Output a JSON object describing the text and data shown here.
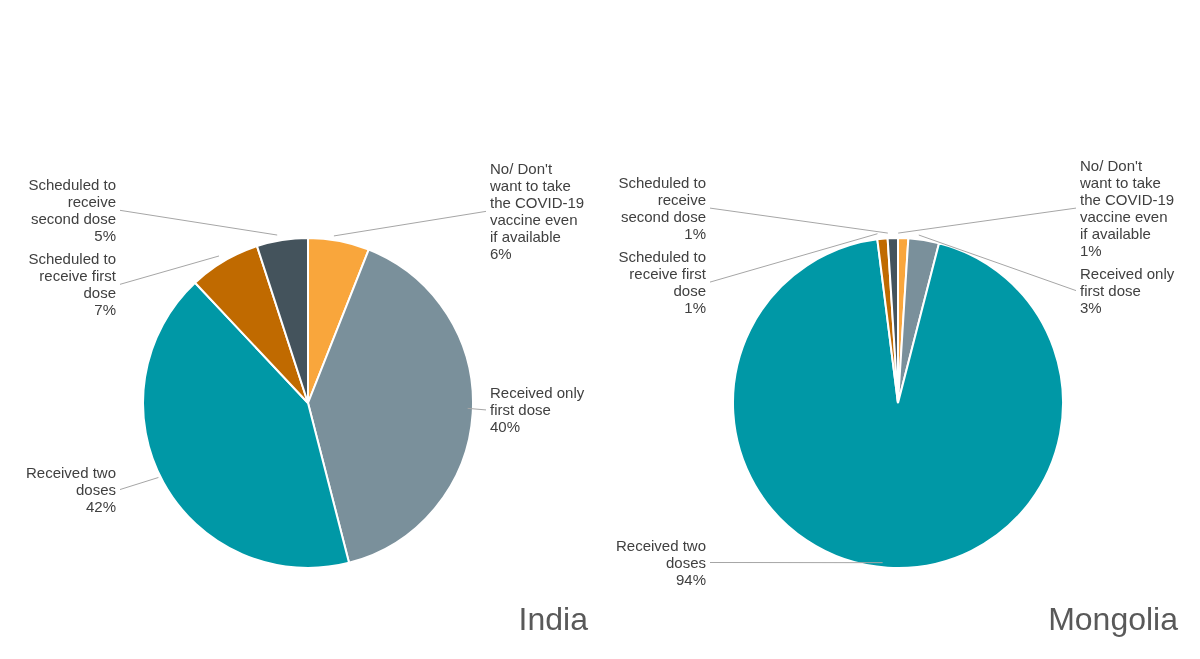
{
  "chart_data": [
    {
      "type": "pie",
      "title": "India",
      "categories": [
        "No/ Don't want to take the COVID-19 vaccine even if available",
        "Received only first dose",
        "Received two doses",
        "Scheduled to receive first dose",
        "Scheduled to receive second dose"
      ],
      "values": [
        6,
        40,
        42,
        7,
        5
      ],
      "value_labels": [
        "6%",
        "40%",
        "42%",
        "7%",
        "5%"
      ],
      "colors": [
        "#f9a63c",
        "#7a909b",
        "#0098a6",
        "#c06a00",
        "#44535c"
      ],
      "legend": false
    },
    {
      "type": "pie",
      "title": "Mongolia",
      "categories": [
        "No/ Don't want to take the COVID-19 vaccine even if available",
        "Received only first dose",
        "Received two doses",
        "Scheduled to receive first dose",
        "Scheduled to receive second dose"
      ],
      "values": [
        1,
        3,
        94,
        1,
        1
      ],
      "value_labels": [
        "1%",
        "3%",
        "94%",
        "1%",
        "1%"
      ],
      "colors": [
        "#f9a63c",
        "#7a909b",
        "#0098a6",
        "#c06a00",
        "#44535c"
      ],
      "legend": false
    }
  ]
}
